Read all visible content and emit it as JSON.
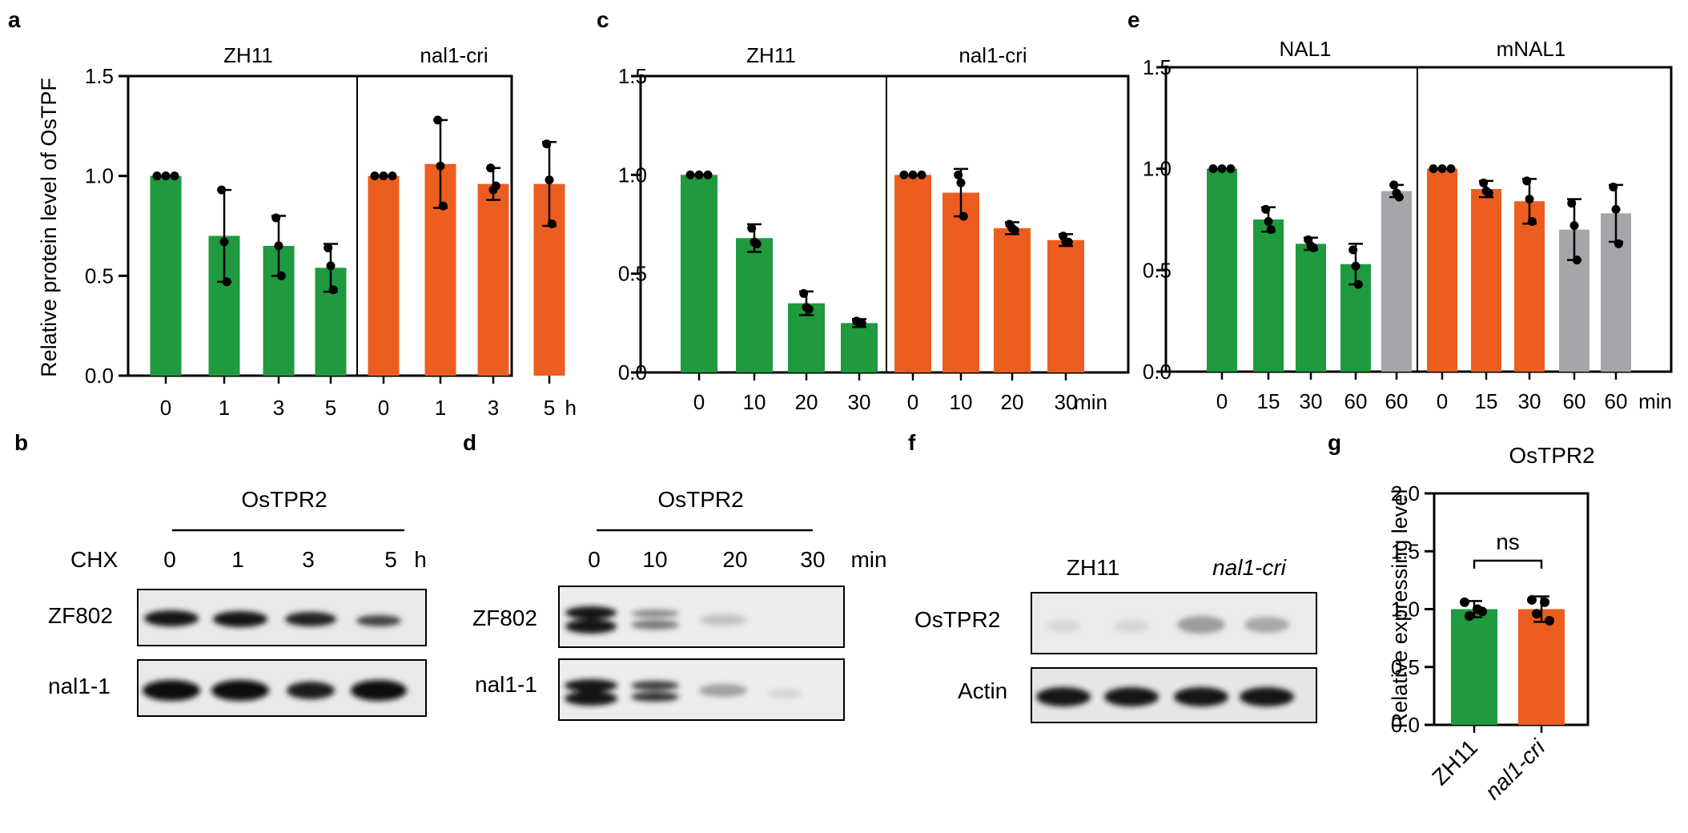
{
  "colors": {
    "green": "#1f9a3e",
    "orange": "#ec5e1f",
    "gray": "#a6a6aa",
    "blot_bg": "#ebebeb",
    "band": "#161616"
  },
  "panels": {
    "a": {
      "letter": "a"
    },
    "b": {
      "letter": "b",
      "title": "OsTPR2",
      "treatment": "CHX",
      "times": [
        "0",
        "1",
        "3",
        "5"
      ],
      "unit": "h",
      "rows": [
        "ZF802",
        "nal1-1"
      ]
    },
    "c": {
      "letter": "c"
    },
    "d": {
      "letter": "d",
      "title": "OsTPR2",
      "times": [
        "0",
        "10",
        "20",
        "30"
      ],
      "unit": "min",
      "rows": [
        "ZF802",
        "nal1-1"
      ]
    },
    "e": {
      "letter": "e"
    },
    "f": {
      "letter": "f",
      "columns": [
        "ZH11",
        "nal1-cri"
      ],
      "rows": [
        "OsTPR2",
        "Actin"
      ]
    },
    "g": {
      "letter": "g"
    }
  },
  "chart_data": [
    {
      "panel": "a",
      "type": "bar",
      "ylabel": "Relative protein level of OsTPF",
      "ylim": [
        0,
        1.5
      ],
      "yticks": [
        "0.0",
        "0.5",
        "1.0",
        "1.5"
      ],
      "groups": [
        "ZH11",
        "nal1-cri"
      ],
      "categories": [
        "0",
        "1",
        "3",
        "5",
        "0",
        "1",
        "3",
        "5"
      ],
      "unit": "h",
      "values": [
        1.0,
        0.7,
        0.65,
        0.54,
        1.0,
        1.06,
        0.96,
        0.96
      ],
      "colors": [
        "green",
        "green",
        "green",
        "green",
        "orange",
        "orange",
        "orange",
        "orange"
      ],
      "errors": [
        0,
        0.23,
        0.15,
        0.12,
        0,
        0.22,
        0.08,
        0.21
      ],
      "points": [
        [
          1.0,
          1.0,
          1.0
        ],
        [
          0.93,
          0.67,
          0.47
        ],
        [
          0.79,
          0.65,
          0.5
        ],
        [
          0.64,
          0.55,
          0.43
        ],
        [
          1.0,
          1.0,
          1.0
        ],
        [
          1.28,
          1.05,
          0.85
        ],
        [
          1.04,
          0.93,
          0.95
        ],
        [
          1.16,
          0.98,
          0.76
        ]
      ]
    },
    {
      "panel": "c",
      "type": "bar",
      "ylim": [
        0,
        1.5
      ],
      "yticks": [
        "0.0",
        "0.5",
        "1.0",
        "1.5"
      ],
      "groups": [
        "ZH11",
        "nal1-cri"
      ],
      "categories": [
        "0",
        "10",
        "20",
        "30",
        "0",
        "10",
        "20",
        "30"
      ],
      "unit": "min",
      "values": [
        1.0,
        0.68,
        0.35,
        0.25,
        1.0,
        0.91,
        0.73,
        0.67
      ],
      "colors": [
        "green",
        "green",
        "green",
        "green",
        "orange",
        "orange",
        "orange",
        "orange"
      ],
      "errors": [
        0,
        0.07,
        0.06,
        0.02,
        0,
        0.12,
        0.03,
        0.03
      ],
      "points": [
        [
          1.0,
          1.0,
          1.0
        ],
        [
          0.73,
          0.66,
          0.65
        ],
        [
          0.4,
          0.33,
          0.32
        ],
        [
          0.26,
          0.25,
          0.25
        ],
        [
          1.0,
          1.0,
          1.0
        ],
        [
          1.0,
          0.96,
          0.79
        ],
        [
          0.75,
          0.73,
          0.72
        ],
        [
          0.69,
          0.66,
          0.66
        ]
      ]
    },
    {
      "panel": "e",
      "type": "bar",
      "ylim": [
        0,
        1.5
      ],
      "yticks": [
        "0.0",
        "0.5",
        "1.0",
        "1.5"
      ],
      "groups": [
        "NAL1",
        "mNAL1"
      ],
      "categories": [
        "0",
        "15",
        "30",
        "60",
        "60",
        "0",
        "15",
        "30",
        "60",
        "60"
      ],
      "unit": "min",
      "values": [
        1.0,
        0.75,
        0.63,
        0.53,
        0.89,
        1.0,
        0.9,
        0.84,
        0.7,
        0.78
      ],
      "colors": [
        "green",
        "green",
        "green",
        "green",
        "gray",
        "orange",
        "orange",
        "orange",
        "gray",
        "gray"
      ],
      "errors": [
        0,
        0.06,
        0.03,
        0.1,
        0.03,
        0,
        0.04,
        0.11,
        0.15,
        0.14
      ],
      "points": [
        [
          1.0,
          1.0,
          1.0
        ],
        [
          0.8,
          0.74,
          0.7
        ],
        [
          0.65,
          0.62,
          0.61
        ],
        [
          0.6,
          0.52,
          0.43
        ],
        [
          0.92,
          0.88,
          0.86
        ],
        [
          1.0,
          1.0,
          1.0
        ],
        [
          0.93,
          0.89,
          0.88
        ],
        [
          0.94,
          0.85,
          0.74
        ],
        [
          0.83,
          0.72,
          0.55
        ],
        [
          0.91,
          0.8,
          0.63
        ]
      ]
    },
    {
      "panel": "g",
      "type": "bar",
      "title": "OsTPR2",
      "ylabel": "Relative expressing level",
      "ylim": [
        0,
        2.0
      ],
      "yticks": [
        "0.0",
        "0.5",
        "1.0",
        "1.5",
        "2.0"
      ],
      "categories": [
        "ZH11",
        "nal1-cri"
      ],
      "values": [
        1.0,
        1.0
      ],
      "colors": [
        "green",
        "orange"
      ],
      "errors": [
        0.07,
        0.11
      ],
      "points": [
        [
          1.06,
          1.0,
          0.94,
          0.98
        ],
        [
          1.08,
          1.06,
          0.96,
          0.9
        ]
      ],
      "annotation": "ns"
    }
  ]
}
